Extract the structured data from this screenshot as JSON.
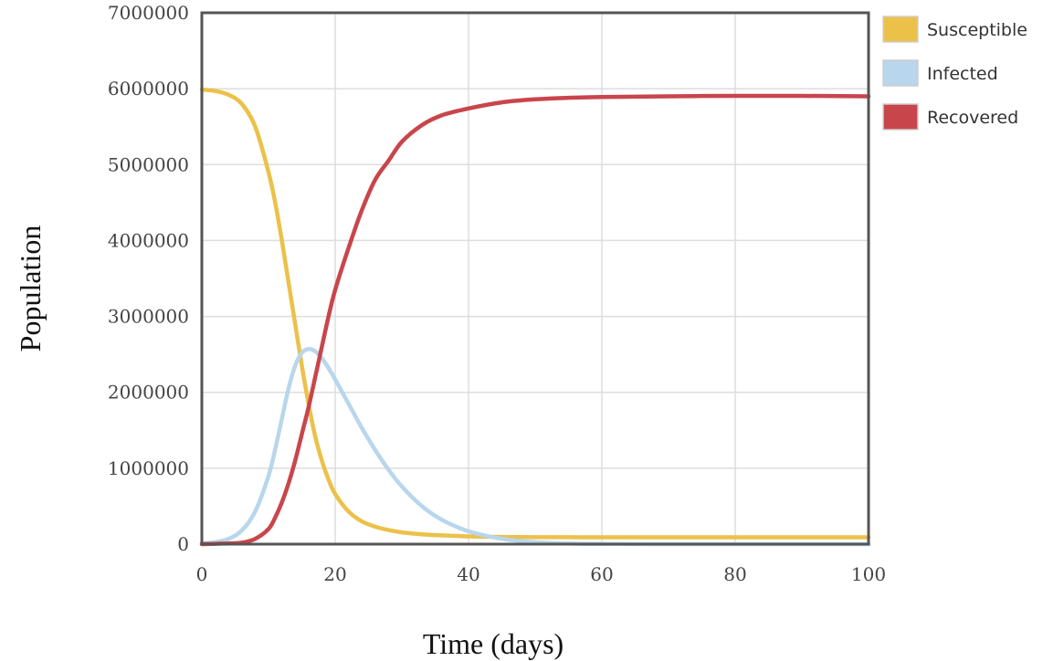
{
  "chart_data": {
    "type": "line",
    "xlabel": "Time (days)",
    "ylabel": "Population",
    "xlim": [
      0,
      100
    ],
    "ylim": [
      0,
      7000000
    ],
    "x_ticks": [
      0,
      20,
      40,
      60,
      80,
      100
    ],
    "x_tick_labels": [
      "0",
      "20",
      "40",
      "60",
      "80",
      "100"
    ],
    "y_ticks": [
      0,
      1000000,
      2000000,
      3000000,
      4000000,
      5000000,
      6000000,
      7000000
    ],
    "y_tick_labels": [
      "0",
      "1000000",
      "2000000",
      "3000000",
      "4000000",
      "5000000",
      "6000000",
      "7000000"
    ],
    "grid": true,
    "legend_position": "right",
    "x": [
      0,
      2,
      4,
      6,
      8,
      10,
      11,
      12,
      13,
      14,
      15,
      16,
      17,
      18,
      19,
      20,
      22,
      24,
      26,
      28,
      30,
      33,
      36,
      40,
      45,
      50,
      55,
      60,
      70,
      80,
      90,
      100
    ],
    "series": [
      {
        "name": "Susceptible",
        "color": "#ecc14a",
        "values": [
          5990000,
          5970000,
          5920000,
          5800000,
          5500000,
          4900000,
          4500000,
          4000000,
          3450000,
          2900000,
          2350000,
          1850000,
          1420000,
          1100000,
          850000,
          660000,
          430000,
          300000,
          230000,
          185000,
          155000,
          130000,
          115000,
          102000,
          95000,
          92000,
          91000,
          90000,
          90000,
          90000,
          90000,
          90000
        ]
      },
      {
        "name": "Infected",
        "color": "#b8d6ec",
        "values": [
          10000,
          25000,
          70000,
          180000,
          430000,
          900000,
          1250000,
          1650000,
          2050000,
          2350000,
          2520000,
          2570000,
          2540000,
          2450000,
          2320000,
          2170000,
          1850000,
          1530000,
          1240000,
          980000,
          760000,
          500000,
          320000,
          170000,
          70000,
          25000,
          8000,
          2000,
          0,
          0,
          0,
          0
        ]
      },
      {
        "name": "Recovered",
        "color": "#c9454c",
        "values": [
          0,
          5000,
          10000,
          20000,
          70000,
          200000,
          350000,
          550000,
          800000,
          1100000,
          1450000,
          1800000,
          2200000,
          2600000,
          3000000,
          3350000,
          3900000,
          4400000,
          4800000,
          5050000,
          5300000,
          5520000,
          5650000,
          5740000,
          5820000,
          5860000,
          5880000,
          5890000,
          5900000,
          5905000,
          5905000,
          5900000
        ]
      }
    ]
  }
}
